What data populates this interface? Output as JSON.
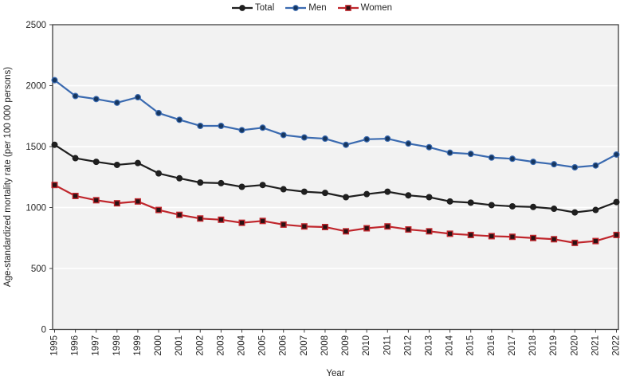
{
  "chart_data": {
    "type": "line",
    "title": "",
    "xlabel": "Year",
    "ylabel": "Age-standardized mortality rate (per 100 000 persons)",
    "ylim": [
      0,
      2500
    ],
    "ytick_step": 500,
    "grid": true,
    "legend_position": "top-center",
    "colors": {
      "plot_bg": "#f2f2f2",
      "grid": "#ffffff",
      "border": "#3f3f3f",
      "text": "#262626"
    },
    "x": [
      1995,
      1996,
      1997,
      1998,
      1999,
      2000,
      2001,
      2002,
      2003,
      2004,
      2005,
      2006,
      2007,
      2008,
      2009,
      2010,
      2011,
      2012,
      2013,
      2014,
      2015,
      2016,
      2017,
      2018,
      2019,
      2020,
      2021,
      2022
    ],
    "series": [
      {
        "name": "Total",
        "color": "#1f1f1f",
        "marker": "circle",
        "marker_fill": "#1f1f1f",
        "values": [
          1515,
          1405,
          1375,
          1350,
          1365,
          1280,
          1240,
          1205,
          1200,
          1170,
          1185,
          1150,
          1130,
          1120,
          1085,
          1110,
          1130,
          1100,
          1085,
          1050,
          1040,
          1020,
          1010,
          1005,
          990,
          960,
          980,
          1045
        ]
      },
      {
        "name": "Men",
        "color": "#3a6ab0",
        "marker": "circle",
        "marker_fill": "#16365f",
        "values": [
          2045,
          1915,
          1890,
          1860,
          1905,
          1775,
          1720,
          1670,
          1670,
          1635,
          1655,
          1595,
          1575,
          1565,
          1515,
          1560,
          1565,
          1525,
          1495,
          1450,
          1440,
          1410,
          1400,
          1375,
          1355,
          1330,
          1345,
          1435
        ]
      },
      {
        "name": "Women",
        "color": "#c0262c",
        "marker": "square",
        "marker_fill": "#2b1113",
        "values": [
          1185,
          1095,
          1060,
          1035,
          1050,
          980,
          940,
          910,
          900,
          875,
          890,
          860,
          845,
          840,
          805,
          830,
          845,
          820,
          805,
          785,
          775,
          765,
          760,
          750,
          740,
          710,
          725,
          775
        ]
      }
    ]
  }
}
